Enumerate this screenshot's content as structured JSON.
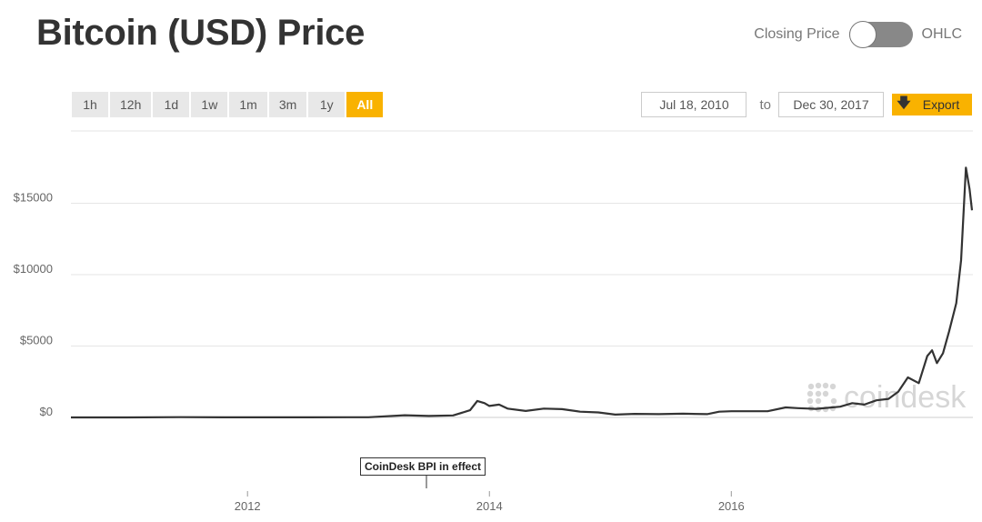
{
  "title": "Bitcoin (USD) Price",
  "toggle": {
    "left_label": "Closing Price",
    "right_label": "OHLC"
  },
  "ranges": [
    "1h",
    "12h",
    "1d",
    "1w",
    "1m",
    "3m",
    "1y",
    "All"
  ],
  "active_range": "All",
  "date_from": "Jul 18, 2010",
  "date_to_label": "to",
  "date_to": "Dec 30, 2017",
  "export_label": "Export",
  "watermark": "coindesk",
  "annotation": "CoinDesk BPI in effect",
  "colors": {
    "accent": "#f9b200",
    "line": "#333333",
    "grid": "#e6e6e6"
  },
  "chart_data": {
    "type": "line",
    "title": "Bitcoin (USD) Price",
    "xlabel": "",
    "ylabel": "",
    "x_tick_labels": [
      "2012",
      "2014",
      "2016"
    ],
    "y_tick_labels": [
      "$0",
      "$5000",
      "$10000",
      "$15000"
    ],
    "xlim": [
      2010.54,
      2017.99
    ],
    "ylim": [
      0,
      17500
    ],
    "grid": true,
    "series": [
      {
        "values": [
          [
            2010.54,
            0
          ],
          [
            2011.0,
            1
          ],
          [
            2011.45,
            20
          ],
          [
            2011.8,
            5
          ],
          [
            2012.5,
            8
          ],
          [
            2013.0,
            15
          ],
          [
            2013.3,
            150
          ],
          [
            2013.5,
            100
          ],
          [
            2013.7,
            140
          ],
          [
            2013.84,
            500
          ],
          [
            2013.9,
            1150
          ],
          [
            2013.96,
            1000
          ],
          [
            2014.0,
            800
          ],
          [
            2014.08,
            900
          ],
          [
            2014.15,
            620
          ],
          [
            2014.3,
            450
          ],
          [
            2014.45,
            620
          ],
          [
            2014.6,
            580
          ],
          [
            2014.75,
            400
          ],
          [
            2014.9,
            350
          ],
          [
            2015.04,
            200
          ],
          [
            2015.2,
            250
          ],
          [
            2015.4,
            230
          ],
          [
            2015.6,
            260
          ],
          [
            2015.8,
            230
          ],
          [
            2015.9,
            400
          ],
          [
            2016.0,
            430
          ],
          [
            2016.3,
            430
          ],
          [
            2016.45,
            700
          ],
          [
            2016.55,
            650
          ],
          [
            2016.7,
            600
          ],
          [
            2016.9,
            750
          ],
          [
            2017.0,
            1000
          ],
          [
            2017.1,
            900
          ],
          [
            2017.2,
            1200
          ],
          [
            2017.3,
            1300
          ],
          [
            2017.38,
            1800
          ],
          [
            2017.46,
            2800
          ],
          [
            2017.55,
            2400
          ],
          [
            2017.62,
            4300
          ],
          [
            2017.66,
            4700
          ],
          [
            2017.7,
            3800
          ],
          [
            2017.75,
            4500
          ],
          [
            2017.8,
            6000
          ],
          [
            2017.83,
            7000
          ],
          [
            2017.86,
            8000
          ],
          [
            2017.9,
            11000
          ],
          [
            2017.94,
            17500
          ],
          [
            2017.97,
            16000
          ],
          [
            2017.99,
            14500
          ]
        ]
      }
    ]
  }
}
